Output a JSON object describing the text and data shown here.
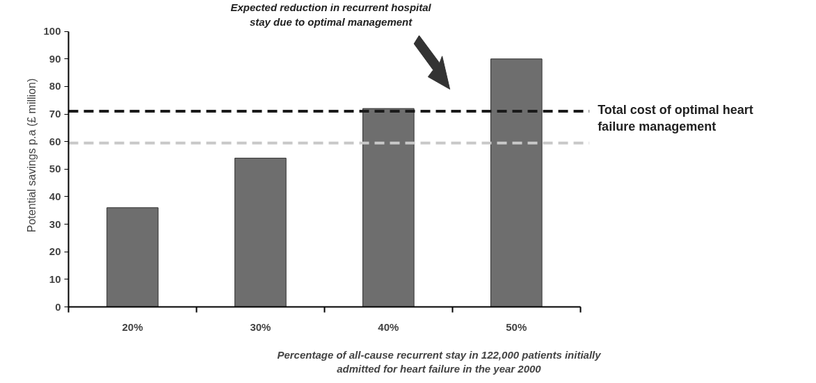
{
  "chart_data": {
    "type": "bar",
    "categories": [
      "20%",
      "30%",
      "40%",
      "50%"
    ],
    "values": [
      36,
      54,
      72,
      90
    ],
    "color": "#6e6e6e",
    "xlabel": "Percentage of all-cause recurrent stay in 122,000 patients initially admitted for heart failure in the year 2000",
    "ylabel": "Potential savings p.a (£ million)",
    "ylim": [
      0,
      100
    ],
    "yticks": [
      0,
      10,
      20,
      30,
      40,
      50,
      60,
      70,
      80,
      90,
      100
    ],
    "grid": false,
    "ref_lines": [
      {
        "axis": "y",
        "value": 71,
        "label": "Total cost of optimal heart failure management",
        "color": "#1a1a1a",
        "line_style": "dashed"
      },
      {
        "axis": "y",
        "value": 59.5,
        "color": "#c8c8c8",
        "line_style": "dashed"
      }
    ],
    "annotations": [
      "Expected reduction in recurrent hospital stay due to optimal management"
    ]
  }
}
